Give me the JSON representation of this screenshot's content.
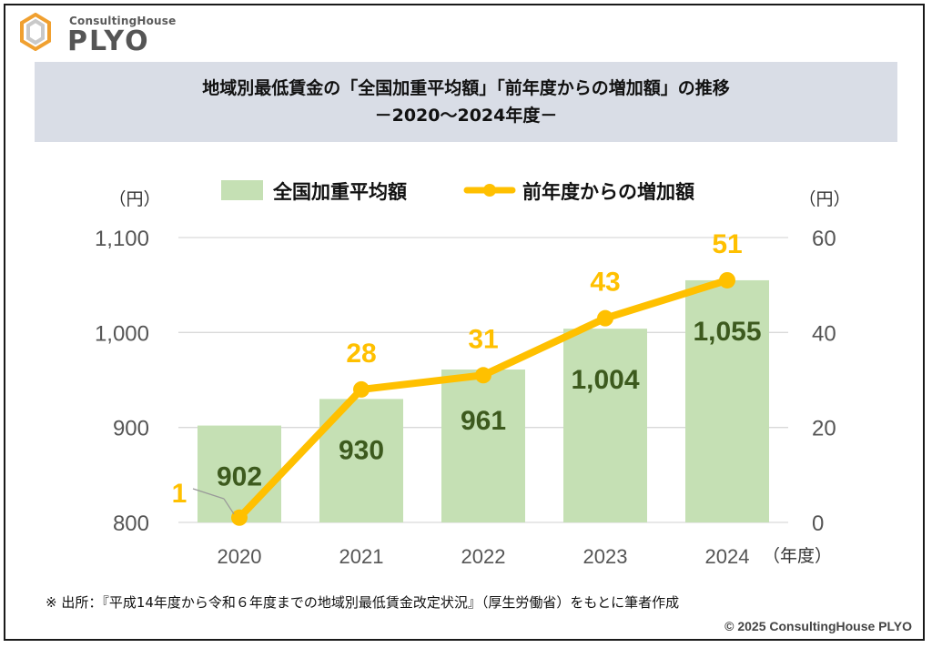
{
  "logo": {
    "subtitle": "ConsultingHouse",
    "name": "PLYO"
  },
  "title": {
    "line1": "地域別最低賃金の「全国加重平均額」「前年度からの増加額」の推移",
    "line2": "－2020～2024年度－"
  },
  "colors": {
    "bar": "#c5e0b4",
    "line": "#ffc000",
    "bar_label": "#3d5a1e",
    "line_label": "#ffc000",
    "axis_text": "#555555",
    "gridline": "#d9d9d9",
    "title_bg": "#d9dde6"
  },
  "chart_data": {
    "type": "bar",
    "legend_position": "top",
    "categories": [
      "2020",
      "2021",
      "2022",
      "2023",
      "2024"
    ],
    "x_unit": "（年度）",
    "series": [
      {
        "name": "全国加重平均額",
        "type": "bar",
        "axis": "left",
        "values": [
          902,
          930,
          961,
          1004,
          1055
        ],
        "labels": [
          "902",
          "930",
          "961",
          "1,004",
          "1,055"
        ]
      },
      {
        "name": "前年度からの増加額",
        "type": "line",
        "axis": "right",
        "values": [
          1,
          28,
          31,
          43,
          51
        ],
        "labels": [
          "1",
          "28",
          "31",
          "43",
          "51"
        ]
      }
    ],
    "left_axis": {
      "unit": "（円）",
      "ylim": [
        800,
        1100
      ],
      "ticks": [
        800,
        900,
        1000,
        1100
      ],
      "tick_labels": [
        "800",
        "900",
        "1,000",
        "1,100"
      ]
    },
    "right_axis": {
      "unit": "（円）",
      "ylim": [
        0,
        60
      ],
      "ticks": [
        0,
        20,
        40,
        60
      ],
      "tick_labels": [
        "0",
        "20",
        "40",
        "60"
      ]
    },
    "grid": true
  },
  "source_note": "※ 出所：『平成14年度から令和６年度までの地域別最低賃金改定状況』（厚生労働省）をもとに筆者作成",
  "copyright": "© 2025 ConsultingHouse PLYO"
}
